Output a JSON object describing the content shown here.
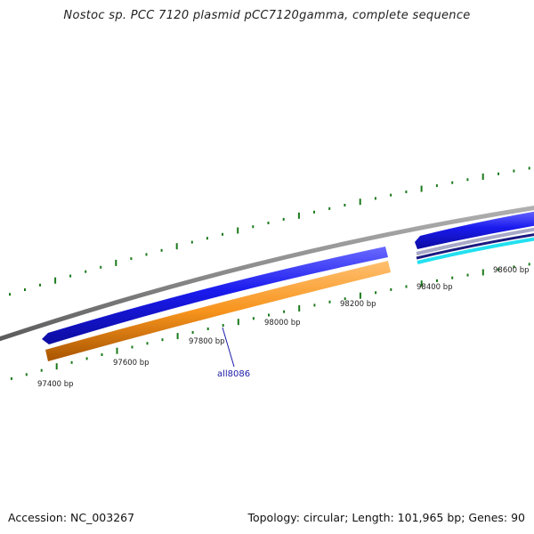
{
  "title": "Nostoc sp. PCC 7120 plasmid pCC7120gamma, complete sequence",
  "accession": "Accession: NC_003267",
  "summary": "Topology: circular; Length: 101,965 bp; Genes: 90",
  "ticks": [
    {
      "bp": 97400,
      "label": "97400 bp"
    },
    {
      "bp": 97600,
      "label": "97600 bp"
    },
    {
      "bp": 97800,
      "label": "97800 bp"
    },
    {
      "bp": 98000,
      "label": "98000 bp"
    },
    {
      "bp": 98200,
      "label": "98200 bp"
    },
    {
      "bp": 98400,
      "label": "98400 bp"
    },
    {
      "bp": 98600,
      "label": "98600 bp"
    }
  ],
  "genes": [
    {
      "name": "all8086",
      "start": 97380,
      "end": 98240,
      "strand": "-",
      "feature": "gene",
      "color": "#1a1aee"
    },
    {
      "name": "all8086",
      "start": 97380,
      "end": 98240,
      "strand": "-",
      "feature": "CDS",
      "color": "#f7941d"
    },
    {
      "name": "",
      "start": 98320,
      "end": 98700,
      "strand": "-",
      "feature": "gene",
      "color": "#1a1aee"
    }
  ],
  "gene_label": "all8086",
  "colors": {
    "backbone": "#8a8a8a",
    "gene": "#1a1aee",
    "cds": "#f7941d",
    "rna": "#22e0f0",
    "tick": "#1b7a1b"
  }
}
